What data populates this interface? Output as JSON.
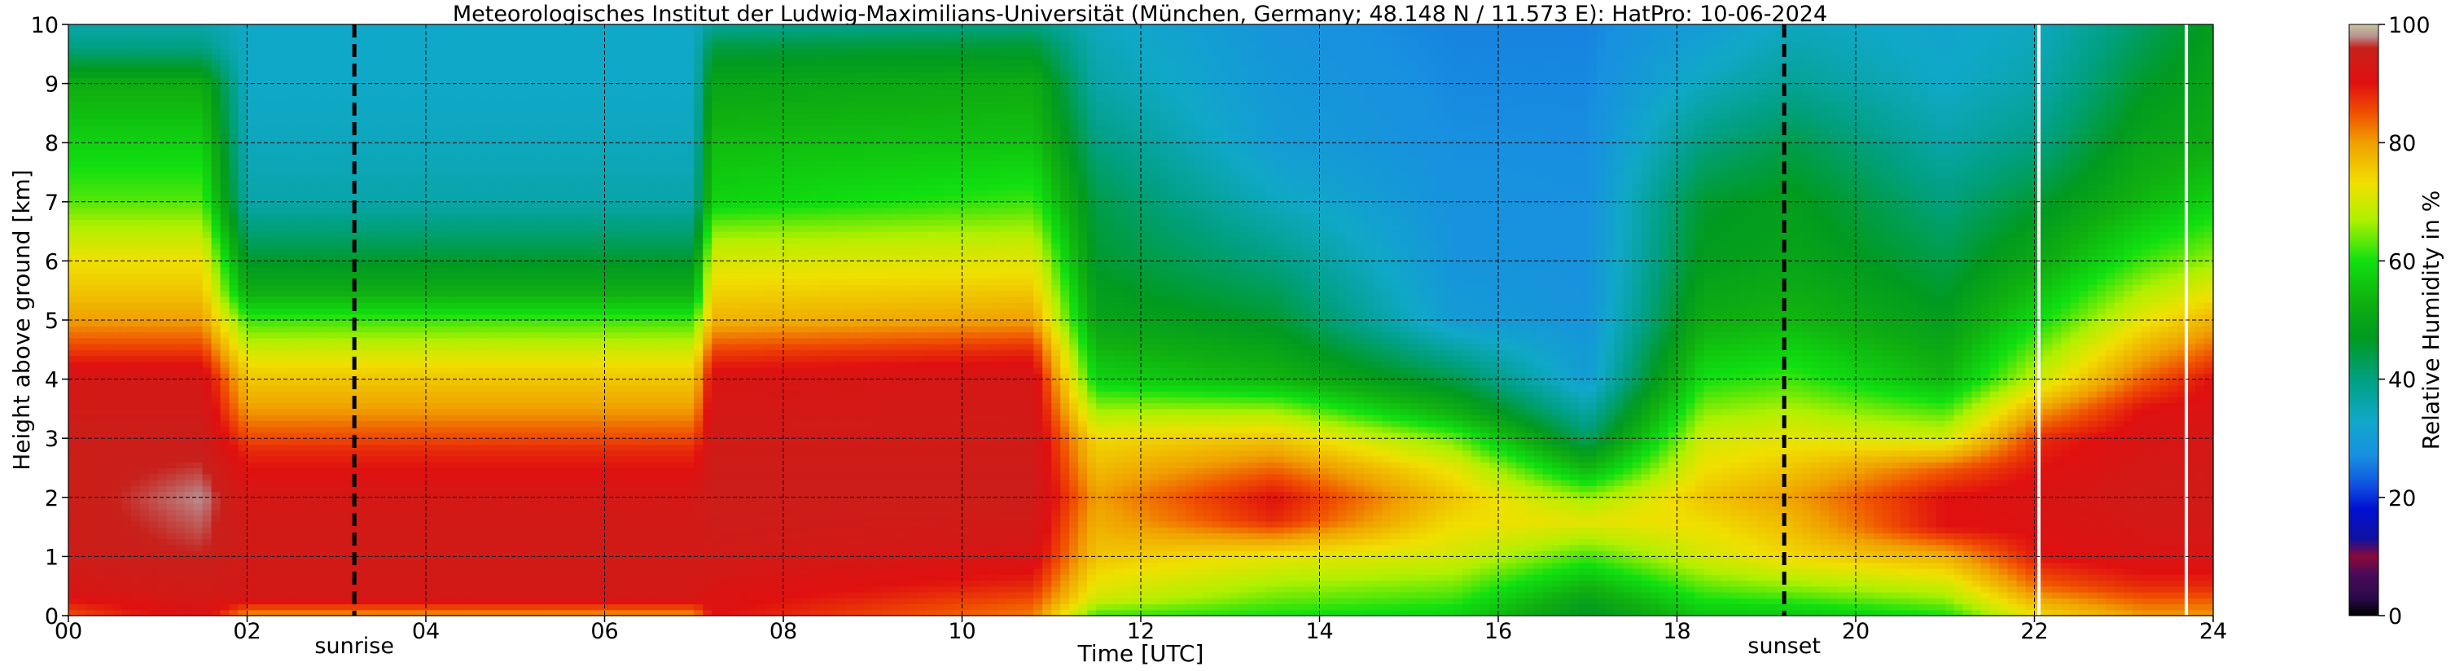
{
  "chart_data": {
    "type": "heatmap",
    "title": "Meteorologisches Institut der Ludwig-Maximilians-Universität (München, Germany; 48.148 N / 11.573 E):    HatPro: 10-06-2024",
    "xlabel": "Time [UTC]",
    "ylabel": "Height above ground [km]",
    "xlim": [
      0,
      24
    ],
    "ylim": [
      0,
      10
    ],
    "x_ticks": [
      0,
      2,
      4,
      6,
      8,
      10,
      12,
      14,
      16,
      18,
      20,
      22,
      24
    ],
    "x_tick_labels": [
      "00",
      "02",
      "04",
      "06",
      "08",
      "10",
      "12",
      "14",
      "16",
      "18",
      "20",
      "22",
      "24"
    ],
    "y_ticks": [
      0,
      1,
      2,
      3,
      4,
      5,
      6,
      7,
      8,
      9,
      10
    ],
    "y_tick_labels": [
      "0",
      "1",
      "2",
      "3",
      "4",
      "5",
      "6",
      "7",
      "8",
      "9",
      "10"
    ],
    "grid": true,
    "grid_style": "dashed",
    "events": [
      {
        "label": "sunrise",
        "time": 3.2
      },
      {
        "label": "sunset",
        "time": 19.2
      }
    ],
    "data_gaps_at_time": [
      22.05,
      23.7
    ],
    "colorbar": {
      "label": "Relative Humidity in %",
      "range": [
        0,
        100
      ],
      "ticks": [
        0,
        20,
        40,
        60,
        80,
        100
      ],
      "stops": [
        {
          "value": 0,
          "color": "#000000"
        },
        {
          "value": 3,
          "color": "#2a0a4a"
        },
        {
          "value": 7,
          "color": "#4a0a5a"
        },
        {
          "value": 10,
          "color": "#8a0a3a"
        },
        {
          "value": 13,
          "color": "#1010a0"
        },
        {
          "value": 18,
          "color": "#0010d0"
        },
        {
          "value": 22,
          "color": "#1050e0"
        },
        {
          "value": 27,
          "color": "#1890e0"
        },
        {
          "value": 33,
          "color": "#10a8c8"
        },
        {
          "value": 40,
          "color": "#00a080"
        },
        {
          "value": 47,
          "color": "#009a20"
        },
        {
          "value": 53,
          "color": "#10b010"
        },
        {
          "value": 60,
          "color": "#10e010"
        },
        {
          "value": 67,
          "color": "#b0f000"
        },
        {
          "value": 73,
          "color": "#f0e000"
        },
        {
          "value": 80,
          "color": "#f0a000"
        },
        {
          "value": 85,
          "color": "#f05000"
        },
        {
          "value": 90,
          "color": "#e01010"
        },
        {
          "value": 96,
          "color": "#c8201a"
        },
        {
          "value": 98,
          "color": "#b89090"
        },
        {
          "value": 100,
          "color": "#c8c8a0"
        }
      ]
    },
    "rh_profiles": [
      {
        "time": 0.0,
        "heights": [
          0,
          0.4,
          1,
          2,
          3,
          4,
          4.4,
          5,
          5.5,
          6,
          6.5,
          7,
          8,
          9,
          9.6,
          10
        ],
        "rh": [
          85,
          92,
          95,
          95,
          95,
          93,
          88,
          80,
          76,
          73,
          68,
          63,
          58,
          52,
          40,
          36
        ]
      },
      {
        "time": 1.5,
        "heights": [
          0,
          0.4,
          1,
          2,
          3,
          4,
          4.4,
          5,
          5.5,
          6,
          6.5,
          7,
          8,
          9,
          9.6,
          10
        ],
        "rh": [
          92,
          94,
          96,
          98,
          95,
          93,
          88,
          80,
          76,
          73,
          68,
          63,
          58,
          52,
          40,
          36
        ]
      },
      {
        "time": 2.0,
        "heights": [
          0,
          0.3,
          1,
          2,
          2.8,
          3.5,
          4.2,
          5,
          5.5,
          6.2,
          7,
          8,
          9,
          10
        ],
        "rh": [
          80,
          93,
          94,
          93,
          88,
          80,
          74,
          62,
          52,
          44,
          36,
          34,
          33,
          33
        ]
      },
      {
        "time": 7.0,
        "heights": [
          0,
          0.3,
          1,
          2,
          2.8,
          3.5,
          4.2,
          5,
          5.5,
          6.2,
          7,
          8,
          9,
          10
        ],
        "rh": [
          80,
          93,
          94,
          93,
          88,
          80,
          74,
          62,
          52,
          44,
          36,
          34,
          33,
          33
        ]
      },
      {
        "time": 7.2,
        "heights": [
          0,
          0.5,
          1,
          2,
          3,
          4,
          4.5,
          5,
          5.7,
          6.2,
          6.6,
          7,
          8,
          9,
          9.6,
          10
        ],
        "rh": [
          90,
          92,
          94,
          95,
          94,
          92,
          86,
          78,
          73,
          69,
          64,
          58,
          55,
          50,
          45,
          38
        ]
      },
      {
        "time": 10.8,
        "heights": [
          0,
          0.5,
          1,
          2,
          3,
          4,
          4.5,
          5,
          5.7,
          6.2,
          6.6,
          7,
          8,
          9,
          9.6,
          10
        ],
        "rh": [
          82,
          88,
          92,
          95,
          94,
          93,
          88,
          80,
          74,
          70,
          66,
          62,
          56,
          52,
          46,
          40
        ]
      },
      {
        "time": 11.5,
        "heights": [
          0,
          0.3,
          1,
          2,
          3,
          3.5,
          4,
          5,
          6,
          7,
          8,
          9,
          10
        ],
        "rh": [
          62,
          70,
          76,
          80,
          74,
          66,
          58,
          50,
          46,
          44,
          40,
          36,
          34
        ]
      },
      {
        "time": 13.5,
        "heights": [
          0,
          0.3,
          1,
          1.6,
          2,
          2.4,
          3,
          3.4,
          4,
          5,
          6,
          7,
          8,
          10
        ],
        "rh": [
          60,
          64,
          72,
          88,
          90,
          85,
          76,
          68,
          54,
          46,
          40,
          34,
          30,
          28
        ]
      },
      {
        "time": 15.5,
        "heights": [
          0,
          0.3,
          1,
          2,
          2.5,
          3,
          3.4,
          4,
          5,
          6,
          10
        ],
        "rh": [
          58,
          62,
          70,
          76,
          72,
          64,
          54,
          44,
          30,
          28,
          26
        ]
      },
      {
        "time": 17.0,
        "heights": [
          0,
          0.3,
          1,
          1.6,
          2,
          2.4,
          3,
          4,
          5,
          10
        ],
        "rh": [
          46,
          50,
          62,
          72,
          66,
          56,
          42,
          30,
          28,
          26
        ]
      },
      {
        "time": 18.3,
        "heights": [
          0,
          0.4,
          1,
          2,
          3,
          4,
          5,
          6,
          7,
          8,
          9,
          10
        ],
        "rh": [
          56,
          62,
          70,
          76,
          70,
          60,
          52,
          48,
          46,
          40,
          34,
          30
        ]
      },
      {
        "time": 19.3,
        "heights": [
          0,
          0.4,
          1,
          2,
          3,
          4,
          5,
          6,
          7,
          8,
          9,
          10
        ],
        "rh": [
          56,
          64,
          74,
          80,
          72,
          62,
          54,
          50,
          48,
          44,
          38,
          34
        ]
      },
      {
        "time": 21.0,
        "heights": [
          0,
          0.3,
          1,
          1.5,
          2,
          2.5,
          3,
          3.5,
          4,
          5,
          6,
          7,
          8,
          9,
          10
        ],
        "rh": [
          60,
          66,
          78,
          90,
          90,
          84,
          70,
          62,
          54,
          48,
          44,
          40,
          36,
          33,
          32
        ]
      },
      {
        "time": 22.1,
        "heights": [
          0,
          0.5,
          1,
          2,
          3,
          3.5,
          4,
          5,
          6,
          7,
          8,
          9,
          10
        ],
        "rh": [
          74,
          84,
          90,
          92,
          88,
          80,
          70,
          60,
          52,
          46,
          40,
          36,
          34
        ]
      },
      {
        "time": 23.2,
        "heights": [
          0,
          0.5,
          1,
          2,
          3,
          3.5,
          4,
          5,
          6,
          7,
          8,
          9,
          10
        ],
        "rh": [
          80,
          88,
          92,
          94,
          92,
          90,
          84,
          72,
          62,
          54,
          50,
          46,
          42
        ]
      },
      {
        "time": 24.0,
        "heights": [
          0,
          0.5,
          1,
          2,
          3,
          4,
          5,
          6,
          7,
          8,
          9,
          10
        ],
        "rh": [
          80,
          88,
          92,
          94,
          93,
          90,
          78,
          66,
          58,
          52,
          50,
          48
        ]
      }
    ]
  }
}
